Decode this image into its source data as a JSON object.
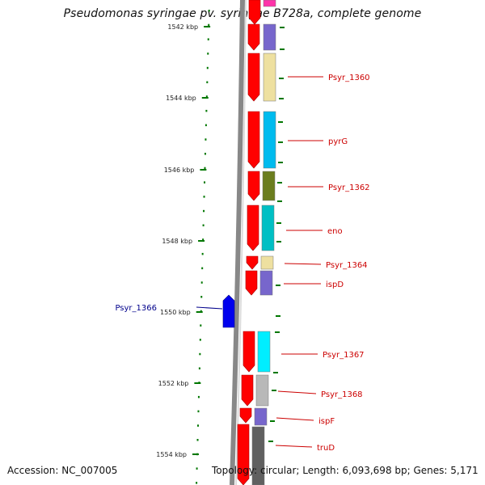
{
  "title": "Pseudomonas syringae pv. syringae B728a, complete genome",
  "footer": {
    "accession": "Accession: NC_007005",
    "summary": "Topology: circular; Length: 6,093,698 bp; Genes: 5,171"
  },
  "scale_labels": [
    "1542 kbp",
    "1544 kbp",
    "1546 kbp",
    "1548 kbp",
    "1550 kbp",
    "1552 kbp",
    "1554 kbp"
  ],
  "gene_labels": [
    {
      "text": "Psyr_1360",
      "color": "#cc0000"
    },
    {
      "text": "pyrG",
      "color": "#cc0000"
    },
    {
      "text": "Psyr_1362",
      "color": "#cc0000"
    },
    {
      "text": "eno",
      "color": "#cc0000"
    },
    {
      "text": "Psyr_1364",
      "color": "#cc0000"
    },
    {
      "text": "ispD",
      "color": "#cc0000"
    },
    {
      "text": "Psyr_1366",
      "color": "#00008b"
    },
    {
      "text": "Psyr_1367",
      "color": "#cc0000"
    },
    {
      "text": "Psyr_1368",
      "color": "#cc0000"
    },
    {
      "text": "ispF",
      "color": "#cc0000"
    },
    {
      "text": "truD",
      "color": "#cc0000"
    }
  ],
  "colors": {
    "forward_strand_gene": "#ff0000",
    "reverse_strand_gene": "#0000ee",
    "backbone": "#888888",
    "tick": "#007700",
    "category": [
      "#ff33aa",
      "#7766cc",
      "#eee0a0",
      "#00bbee",
      "#6b7d1e",
      "#00bfc4",
      "#eee0a0",
      "#7766cc",
      "#00eeff",
      "#b8b8b8",
      "#7766cc",
      "#606060"
    ]
  }
}
